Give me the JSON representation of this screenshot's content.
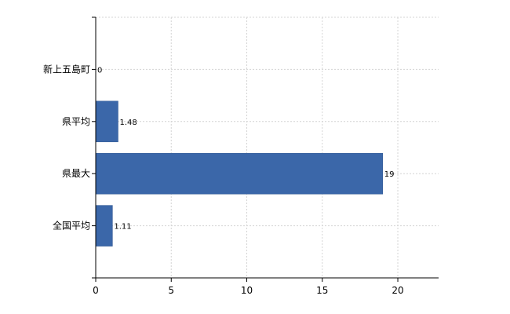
{
  "chart_data": {
    "type": "bar",
    "orientation": "horizontal",
    "categories": [
      "新上五島町",
      "県平均",
      "県最大",
      "全国平均"
    ],
    "values": [
      0,
      1.48,
      19,
      1.11
    ],
    "value_labels": [
      "0",
      "1.48",
      "19",
      "1.11"
    ],
    "x_ticks": [
      0,
      5,
      10,
      15,
      20
    ],
    "xlim": [
      0,
      22.7
    ],
    "grid": true,
    "bar_color": "#3b67a9"
  }
}
